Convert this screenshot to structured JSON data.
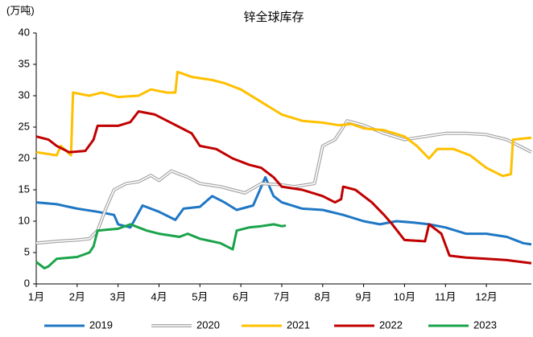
{
  "chart_data": {
    "type": "line",
    "title": "锌全球库存",
    "y_label": "(万吨)",
    "xlim": [
      1,
      13.1
    ],
    "ylim": [
      0,
      40
    ],
    "yticks": [
      0,
      5,
      10,
      15,
      20,
      25,
      30,
      35,
      40
    ],
    "xticks": [
      {
        "value": 1,
        "label": "1月"
      },
      {
        "value": 2,
        "label": "2月"
      },
      {
        "value": 3,
        "label": "3月"
      },
      {
        "value": 4,
        "label": "4月"
      },
      {
        "value": 5,
        "label": "5月"
      },
      {
        "value": 6,
        "label": "6月"
      },
      {
        "value": 7,
        "label": "7月"
      },
      {
        "value": 8,
        "label": "8月"
      },
      {
        "value": 9,
        "label": "9月"
      },
      {
        "value": 10,
        "label": "10月"
      },
      {
        "value": 11,
        "label": "11月"
      },
      {
        "value": 12,
        "label": "12月"
      }
    ],
    "legend": "bottom",
    "series": [
      {
        "name": "2019",
        "color": "#1f77c4",
        "double": false,
        "x": [
          1,
          1.5,
          2,
          2.5,
          2.9,
          3.0,
          3.3,
          3.6,
          4,
          4.4,
          4.6,
          5,
          5.3,
          5.6,
          5.9,
          6.3,
          6.6,
          6.8,
          7.0,
          7.5,
          8,
          8.5,
          9,
          9.4,
          9.8,
          10.2,
          10.6,
          11,
          11.5,
          12,
          12.5,
          12.9,
          13.1
        ],
        "values": [
          13,
          12.7,
          12,
          11.5,
          11,
          9.5,
          9,
          12.5,
          11.5,
          10.2,
          12,
          12.3,
          14,
          13,
          11.8,
          12.5,
          17,
          14,
          13,
          12,
          11.8,
          11,
          10,
          9.5,
          10,
          9.8,
          9.5,
          9,
          8,
          8,
          7.5,
          6.5,
          6.3
        ]
      },
      {
        "name": "2020",
        "color": "#a6a6a6",
        "double": true,
        "x": [
          1,
          1.5,
          2,
          2.3,
          2.5,
          2.7,
          2.9,
          3.2,
          3.5,
          3.8,
          4.0,
          4.3,
          4.7,
          5,
          5.5,
          5.8,
          6.1,
          6.5,
          7,
          7.3,
          7.8,
          8.0,
          8.3,
          8.6,
          9,
          9.5,
          10,
          10.5,
          11,
          11.5,
          12,
          12.5,
          13.1
        ],
        "values": [
          6.5,
          6.8,
          7,
          7.2,
          8.5,
          12,
          15,
          16,
          16.3,
          17.3,
          16.5,
          18,
          17,
          16,
          15.5,
          15,
          14.5,
          16,
          15.8,
          15.5,
          16,
          22,
          23,
          26,
          25.3,
          24,
          23,
          23.5,
          24,
          24,
          23.8,
          23,
          21
        ]
      },
      {
        "name": "2021",
        "color": "#ffc000",
        "double": false,
        "x": [
          1,
          1.5,
          1.6,
          1.85,
          1.9,
          2.3,
          2.6,
          3,
          3.5,
          3.8,
          4.2,
          4.4,
          4.45,
          4.8,
          5.3,
          5.6,
          6,
          6.5,
          7,
          7.5,
          8,
          8.4,
          8.7,
          9,
          9.5,
          10,
          10.3,
          10.6,
          10.8,
          11.2,
          11.6,
          12,
          12.4,
          12.6,
          12.65,
          13.1
        ],
        "values": [
          21,
          20.5,
          22,
          20.5,
          30.5,
          30,
          30.5,
          29.8,
          30,
          31,
          30.5,
          30.5,
          33.8,
          33,
          32.5,
          32,
          31,
          29,
          27,
          26,
          25.7,
          25.3,
          25.5,
          24.8,
          24.5,
          23.5,
          22,
          20,
          21.5,
          21.5,
          20.5,
          18.5,
          17.2,
          17.5,
          23,
          23.3
        ]
      },
      {
        "name": "2022",
        "color": "#c00000",
        "double": false,
        "x": [
          1,
          1.3,
          1.5,
          1.8,
          2.2,
          2.4,
          2.5,
          3.0,
          3.3,
          3.5,
          3.9,
          4.2,
          4.5,
          4.8,
          5.0,
          5.4,
          5.8,
          6.2,
          6.5,
          6.8,
          7.0,
          7.5,
          8,
          8.3,
          8.45,
          8.5,
          8.8,
          9.2,
          9.5,
          9.7,
          10,
          10.5,
          10.6,
          10.9,
          11.1,
          11.5,
          12,
          12.5,
          13.1
        ],
        "values": [
          23.5,
          23,
          22,
          21,
          21.2,
          23,
          25.2,
          25.2,
          25.8,
          27.5,
          27,
          26,
          25,
          24,
          22,
          21.5,
          20,
          19,
          18.5,
          17,
          15.5,
          15,
          14,
          13,
          13.5,
          15.5,
          15,
          13,
          11,
          9.5,
          7,
          6.8,
          9.5,
          8,
          4.5,
          4.2,
          4,
          3.8,
          3.3
        ]
      },
      {
        "name": "2023",
        "color": "#1aa34a",
        "double": false,
        "x": [
          1,
          1.2,
          1.3,
          1.5,
          2,
          2.3,
          2.4,
          2.5,
          3,
          3.3,
          3.7,
          4,
          4.5,
          4.7,
          5,
          5.5,
          5.8,
          5.9,
          6.2,
          6.5,
          6.8,
          7.0,
          7.1
        ],
        "values": [
          3.5,
          2.5,
          2.8,
          4,
          4.3,
          5,
          6,
          8.5,
          8.8,
          9.5,
          8.5,
          8,
          7.5,
          8,
          7.2,
          6.5,
          5.5,
          8.5,
          9,
          9.2,
          9.5,
          9.2,
          9.3
        ]
      }
    ]
  }
}
